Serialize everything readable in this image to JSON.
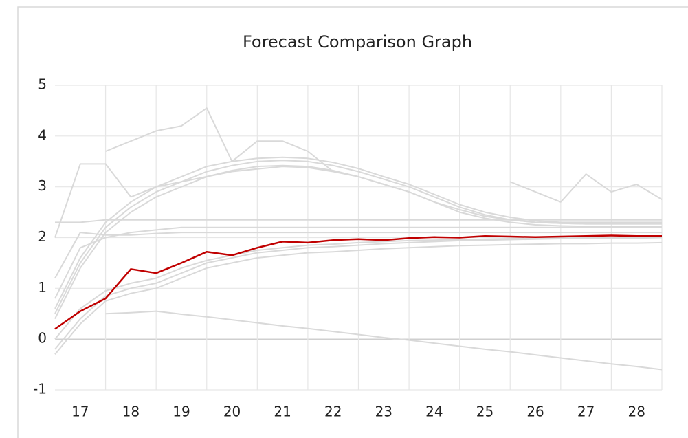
{
  "chart_data": {
    "type": "line",
    "title": "Forecast Comparison Graph",
    "x": [
      16.5,
      17,
      17.5,
      18,
      18.5,
      19,
      19.5,
      20,
      20.5,
      21,
      21.5,
      22,
      22.5,
      23,
      23.5,
      24,
      24.5,
      25,
      25.5,
      26,
      26.5,
      27,
      27.5,
      28,
      28.5
    ],
    "xlim": [
      16.5,
      28.5
    ],
    "xticks": [
      17,
      18,
      19,
      20,
      21,
      22,
      23,
      24,
      25,
      26,
      27,
      28
    ],
    "ylim": [
      -1,
      5
    ],
    "yticks": [
      -1,
      0,
      1,
      2,
      3,
      4,
      5
    ],
    "grid": true,
    "series": [
      {
        "color": "#d9d9d9",
        "values": [
          0.5,
          1.5,
          2.2,
          2.6,
          2.9,
          3.1,
          3.3,
          3.42,
          3.5,
          3.52,
          3.5,
          3.42,
          3.3,
          3.15,
          3.0,
          2.8,
          2.6,
          2.45,
          2.35,
          2.3,
          2.28,
          2.27,
          2.27,
          2.27,
          2.27
        ]
      },
      {
        "color": "#d9d9d9",
        "values": [
          0.4,
          1.4,
          2.1,
          2.5,
          2.8,
          3.0,
          3.2,
          3.32,
          3.4,
          3.42,
          3.4,
          3.32,
          3.2,
          3.05,
          2.9,
          2.7,
          2.5,
          2.38,
          2.3,
          2.25,
          2.23,
          2.22,
          2.22,
          2.22,
          2.22
        ]
      },
      {
        "color": "#d9d9d9",
        "values": [
          0.6,
          1.6,
          2.3,
          2.7,
          3.0,
          3.2,
          3.4,
          3.5,
          3.56,
          3.58,
          3.56,
          3.48,
          3.36,
          3.2,
          3.05,
          2.85,
          2.65,
          2.5,
          2.4,
          2.33,
          2.3,
          2.3,
          2.3,
          2.3,
          2.3
        ]
      },
      {
        "color": "#d9d9d9",
        "values": [
          -0.3,
          0.3,
          0.75,
          0.9,
          1.0,
          1.2,
          1.4,
          1.5,
          1.6,
          1.65,
          1.7,
          1.72,
          1.75,
          1.78,
          1.8,
          1.82,
          1.84,
          1.85,
          1.86,
          1.87,
          1.88,
          1.88,
          1.89,
          1.89,
          1.9
        ]
      },
      {
        "color": "#d9d9d9",
        "values": [
          -0.2,
          0.4,
          0.85,
          1.0,
          1.1,
          1.3,
          1.5,
          1.6,
          1.7,
          1.75,
          1.8,
          1.82,
          1.85,
          1.88,
          1.9,
          1.92,
          1.94,
          1.95,
          1.96,
          1.97,
          1.98,
          1.98,
          1.99,
          1.99,
          2.0
        ]
      },
      {
        "color": "#d9d9d9",
        "values": [
          0.0,
          0.6,
          0.95,
          1.1,
          1.2,
          1.4,
          1.55,
          1.65,
          1.75,
          1.8,
          1.85,
          1.87,
          1.9,
          1.92,
          1.94,
          1.95,
          1.96,
          1.97,
          1.98,
          1.99,
          2.0,
          2.0,
          2.0,
          2.0,
          2.0
        ]
      },
      {
        "color": "#d9d9d9",
        "values": [
          0.8,
          1.8,
          2.0,
          2.1,
          2.15,
          2.2,
          2.2,
          2.2,
          2.2,
          2.2,
          2.2,
          2.2,
          2.2,
          2.2,
          2.2,
          2.2,
          2.2,
          2.2,
          2.2,
          2.2,
          2.2,
          2.2,
          2.2,
          2.2,
          2.2
        ]
      },
      {
        "color": "#d9d9d9",
        "values": [
          2.3,
          2.3,
          2.35,
          2.35,
          2.35,
          2.35,
          2.35,
          2.35,
          2.35,
          2.35,
          2.35,
          2.35,
          2.35,
          2.35,
          2.35,
          2.35,
          2.35,
          2.35,
          2.35,
          2.35,
          2.35,
          2.35,
          2.35,
          2.35,
          2.35
        ]
      },
      {
        "color": "#d9d9d9",
        "values": [
          1.2,
          2.1,
          2.05,
          2.05,
          2.08,
          2.1,
          2.1,
          2.1,
          2.1,
          2.1,
          2.1,
          2.1,
          2.1,
          2.1,
          2.1,
          2.1,
          2.1,
          2.1,
          2.1,
          2.1,
          2.1,
          2.1,
          2.1,
          2.1,
          2.1
        ]
      },
      {
        "color": "#d9d9d9",
        "values": [
          null,
          null,
          0.5,
          0.52,
          0.55,
          0.49,
          0.44,
          0.38,
          0.32,
          0.26,
          0.21,
          0.15,
          0.09,
          0.03,
          -0.02,
          -0.08,
          -0.14,
          -0.2,
          -0.25,
          -0.31,
          -0.37,
          -0.43,
          -0.49,
          -0.54,
          -0.6
        ]
      },
      {
        "color": "#d9d9d9",
        "values": [
          null,
          null,
          3.7,
          3.9,
          4.1,
          4.2,
          4.55,
          3.5,
          3.9,
          3.9,
          3.7,
          3.3,
          null,
          null,
          null,
          null,
          null,
          null,
          null,
          null,
          null,
          null,
          null,
          null,
          null
        ]
      },
      {
        "color": "#d9d9d9",
        "values": [
          null,
          null,
          null,
          null,
          null,
          null,
          null,
          null,
          null,
          null,
          null,
          null,
          null,
          null,
          null,
          null,
          null,
          null,
          3.1,
          2.9,
          2.7,
          3.25,
          2.9,
          3.05,
          2.75
        ]
      },
      {
        "color": "#d9d9d9",
        "values": [
          2.0,
          3.45,
          3.45,
          2.8,
          3.0,
          3.1,
          3.2,
          3.3,
          3.35,
          3.4,
          3.38,
          3.3,
          3.2,
          3.05,
          2.9,
          2.7,
          2.55,
          2.42,
          2.35,
          2.3,
          2.28,
          2.27,
          2.27,
          2.27,
          2.27
        ]
      },
      {
        "color": "#c00000",
        "values": [
          0.2,
          0.55,
          0.8,
          1.38,
          1.3,
          1.5,
          1.72,
          1.65,
          1.8,
          1.92,
          1.9,
          1.95,
          1.97,
          1.95,
          1.99,
          2.01,
          2.0,
          2.03,
          2.02,
          2.01,
          2.02,
          2.03,
          2.04,
          2.03,
          2.03
        ]
      }
    ]
  }
}
